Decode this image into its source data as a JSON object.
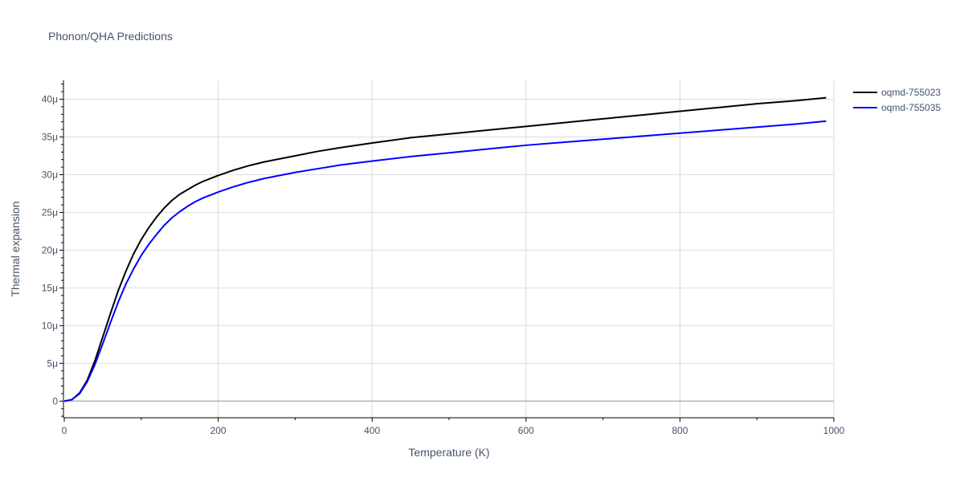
{
  "chart_data": {
    "type": "line",
    "title": "Phonon/QHA Predictions",
    "xlabel": "Temperature (K)",
    "ylabel": "Thermal expansion",
    "xlim": [
      0,
      1000
    ],
    "ylim": [
      -2.2e-06,
      4.25e-05
    ],
    "x_ticks": [
      0,
      200,
      400,
      600,
      800,
      1000
    ],
    "x_tick_labels": [
      "0",
      "200",
      "400",
      "600",
      "800",
      "1000"
    ],
    "y_ticks": [
      0,
      5e-06,
      1e-05,
      1.5e-05,
      2e-05,
      2.5e-05,
      3e-05,
      3.5e-05,
      4e-05
    ],
    "y_tick_labels": [
      "0",
      "5μ",
      "10μ",
      "15μ",
      "20μ",
      "25μ",
      "30μ",
      "35μ",
      "40μ"
    ],
    "grid": true,
    "legend_position": "top-right",
    "series": [
      {
        "name": "oqmd-755023",
        "color": "#000000",
        "x": [
          0,
          10,
          20,
          30,
          40,
          50,
          60,
          70,
          80,
          90,
          100,
          110,
          120,
          130,
          140,
          150,
          160,
          170,
          180,
          190,
          200,
          220,
          240,
          260,
          280,
          300,
          330,
          360,
          400,
          450,
          500,
          550,
          600,
          650,
          700,
          750,
          800,
          850,
          900,
          950,
          990
        ],
        "y": [
          0,
          2e-07,
          1.1e-06,
          2.8e-06,
          5.4e-06,
          8.5e-06,
          1.16e-05,
          1.46e-05,
          1.72e-05,
          1.95e-05,
          2.14e-05,
          2.3e-05,
          2.44e-05,
          2.56e-05,
          2.66e-05,
          2.74e-05,
          2.8e-05,
          2.86e-05,
          2.91e-05,
          2.95e-05,
          2.99e-05,
          3.06e-05,
          3.12e-05,
          3.17e-05,
          3.21e-05,
          3.25e-05,
          3.31e-05,
          3.36e-05,
          3.42e-05,
          3.49e-05,
          3.54e-05,
          3.59e-05,
          3.64e-05,
          3.69e-05,
          3.74e-05,
          3.79e-05,
          3.84e-05,
          3.89e-05,
          3.94e-05,
          3.98e-05,
          4.02e-05
        ]
      },
      {
        "name": "oqmd-755035",
        "color": "#0000ff",
        "x": [
          0,
          10,
          20,
          30,
          40,
          50,
          60,
          70,
          80,
          90,
          100,
          110,
          120,
          130,
          140,
          150,
          160,
          170,
          180,
          190,
          200,
          220,
          240,
          260,
          280,
          300,
          330,
          360,
          400,
          450,
          500,
          550,
          600,
          650,
          700,
          750,
          800,
          850,
          900,
          950,
          990
        ],
        "y": [
          0,
          2e-07,
          1e-06,
          2.6e-06,
          4.9e-06,
          7.6e-06,
          1.04e-05,
          1.31e-05,
          1.55e-05,
          1.75e-05,
          1.93e-05,
          2.08e-05,
          2.21e-05,
          2.33e-05,
          2.43e-05,
          2.51e-05,
          2.58e-05,
          2.64e-05,
          2.69e-05,
          2.73e-05,
          2.77e-05,
          2.84e-05,
          2.9e-05,
          2.95e-05,
          2.99e-05,
          3.03e-05,
          3.08e-05,
          3.13e-05,
          3.18e-05,
          3.24e-05,
          3.29e-05,
          3.34e-05,
          3.39e-05,
          3.43e-05,
          3.47e-05,
          3.51e-05,
          3.55e-05,
          3.59e-05,
          3.63e-05,
          3.67e-05,
          3.71e-05
        ]
      }
    ]
  }
}
